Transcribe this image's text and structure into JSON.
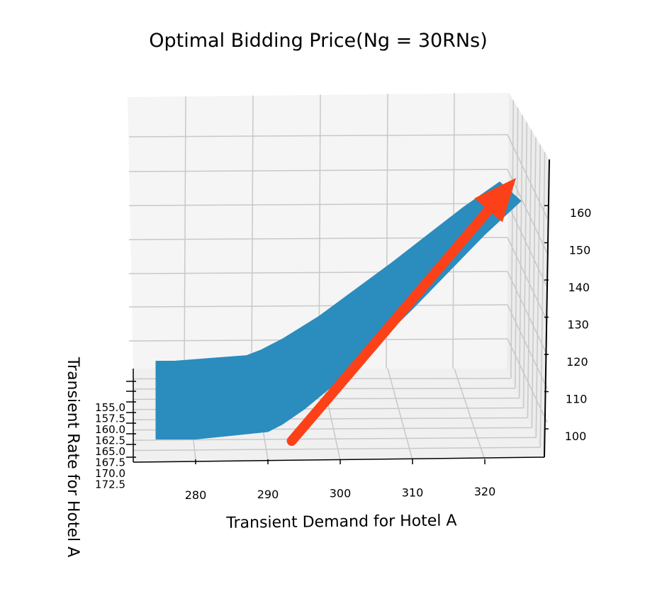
{
  "chart_data": {
    "type": "surface",
    "title": "Optimal Bidding Price(Ng = 30RNs)",
    "xlabel": "Transient Demand for Hotel A",
    "ylabel": "Transient Rate for Hotel A",
    "zlabel": "",
    "x_ticks": [
      "280",
      "290",
      "300",
      "310",
      "320"
    ],
    "y_ticks": [
      "155.0",
      "157.5",
      "160.0",
      "162.5",
      "165.0",
      "167.5",
      "170.0",
      "172.5"
    ],
    "z_ticks": [
      "100",
      "110",
      "120",
      "130",
      "140",
      "150",
      "160"
    ],
    "surface": {
      "x": [
        274,
        280,
        285,
        290,
        292,
        295,
        300,
        310,
        320,
        325
      ],
      "z": [
        102,
        102,
        103,
        104,
        106,
        110,
        118,
        137,
        157,
        166
      ]
    },
    "arrow": {
      "from": [
        293,
        100
      ],
      "to": [
        325,
        168
      ]
    },
    "grid": true,
    "colors": {
      "surface": "#2b8cbe",
      "arrow": "#fc4118",
      "pane": "#f5f5f5",
      "grid": "#c8c8c8"
    }
  }
}
